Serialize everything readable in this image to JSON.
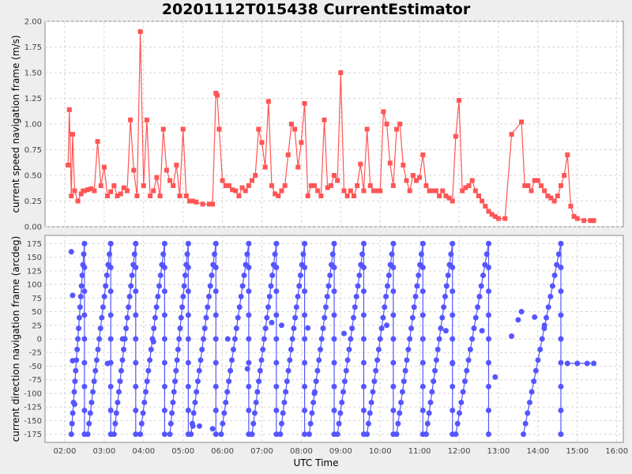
{
  "chart_data": [
    {
      "type": "line",
      "title": "20201112T015438 CurrentEstimator",
      "ylabel": "current speed navigation frame (m/s)",
      "xlabel": "",
      "color": "#ff5555",
      "marker": "square",
      "ylim": [
        0,
        2.0
      ],
      "yticks": [
        "0.00",
        "0.25",
        "0.50",
        "0.75",
        "1.00",
        "1.25",
        "1.50",
        "1.75",
        "2.00"
      ],
      "grid": true,
      "series": [
        {
          "x": [
            "02:05",
            "02:07",
            "02:10",
            "02:12",
            "02:15",
            "02:20",
            "02:25",
            "02:28",
            "02:30",
            "02:35",
            "02:40",
            "02:45",
            "02:50",
            "02:55",
            "03:00",
            "03:05",
            "03:10",
            "03:15",
            "03:20",
            "03:25",
            "03:30",
            "03:35",
            "03:40",
            "03:45",
            "03:50",
            "03:55",
            "04:00",
            "04:05",
            "04:10",
            "04:15",
            "04:20",
            "04:25",
            "04:30",
            "04:35",
            "04:40",
            "04:45",
            "04:50",
            "04:55",
            "05:00",
            "05:05",
            "05:10",
            "05:15",
            "05:20",
            "05:30",
            "05:40",
            "05:45",
            "05:50",
            "05:52",
            "05:55",
            "06:00",
            "06:05",
            "06:10",
            "06:15",
            "06:20",
            "06:25",
            "06:30",
            "06:35",
            "06:40",
            "06:45",
            "06:50",
            "06:55",
            "07:00",
            "07:05",
            "07:10",
            "07:15",
            "07:20",
            "07:25",
            "07:30",
            "07:35",
            "07:40",
            "07:45",
            "07:50",
            "07:55",
            "08:00",
            "08:05",
            "08:10",
            "08:15",
            "08:20",
            "08:25",
            "08:30",
            "08:35",
            "08:40",
            "08:45",
            "08:50",
            "08:55",
            "09:00",
            "09:05",
            "09:10",
            "09:15",
            "09:20",
            "09:25",
            "09:30",
            "09:35",
            "09:40",
            "09:45",
            "09:50",
            "09:55",
            "10:00",
            "10:05",
            "10:10",
            "10:15",
            "10:20",
            "10:25",
            "10:30",
            "10:35",
            "10:40",
            "10:45",
            "10:50",
            "10:55",
            "11:00",
            "11:05",
            "11:10",
            "11:15",
            "11:20",
            "11:25",
            "11:30",
            "11:35",
            "11:40",
            "11:45",
            "11:50",
            "11:55",
            "12:00",
            "12:05",
            "12:10",
            "12:15",
            "12:20",
            "12:25",
            "12:30",
            "12:35",
            "12:40",
            "12:45",
            "12:50",
            "12:55",
            "13:00",
            "13:10",
            "13:20",
            "13:35",
            "13:40",
            "13:45",
            "13:50",
            "13:55",
            "14:00",
            "14:05",
            "14:10",
            "14:15",
            "14:20",
            "14:25",
            "14:30",
            "14:35",
            "14:40",
            "14:45",
            "14:50",
            "14:55",
            "15:00",
            "15:10",
            "15:20",
            "15:25"
          ],
          "y": [
            0.6,
            1.14,
            0.3,
            0.9,
            0.35,
            0.25,
            0.32,
            0.35,
            0.35,
            0.36,
            0.37,
            0.35,
            0.83,
            0.4,
            0.58,
            0.3,
            0.34,
            0.4,
            0.3,
            0.32,
            0.38,
            0.35,
            1.04,
            0.55,
            0.3,
            1.9,
            0.4,
            1.04,
            0.3,
            0.35,
            0.48,
            0.3,
            0.95,
            0.55,
            0.45,
            0.4,
            0.6,
            0.3,
            0.95,
            0.3,
            0.25,
            0.25,
            0.24,
            0.22,
            0.22,
            0.22,
            1.3,
            1.28,
            0.95,
            0.45,
            0.4,
            0.4,
            0.36,
            0.35,
            0.3,
            0.38,
            0.35,
            0.4,
            0.45,
            0.5,
            0.95,
            0.82,
            0.58,
            1.22,
            0.4,
            0.32,
            0.3,
            0.35,
            0.4,
            0.7,
            1.0,
            0.95,
            0.58,
            0.82,
            1.2,
            0.3,
            0.4,
            0.4,
            0.35,
            0.3,
            1.04,
            0.38,
            0.4,
            0.5,
            0.45,
            1.5,
            0.35,
            0.3,
            0.35,
            0.3,
            0.4,
            0.61,
            0.35,
            0.95,
            0.4,
            0.35,
            0.35,
            0.35,
            1.12,
            1.0,
            0.62,
            0.4,
            0.95,
            1.0,
            0.6,
            0.45,
            0.35,
            0.5,
            0.45,
            0.48,
            0.7,
            0.4,
            0.35,
            0.35,
            0.35,
            0.3,
            0.35,
            0.3,
            0.28,
            0.25,
            0.88,
            1.23,
            0.35,
            0.38,
            0.4,
            0.45,
            0.35,
            0.3,
            0.25,
            0.2,
            0.15,
            0.12,
            0.1,
            0.08,
            0.08,
            0.9,
            1.02,
            0.4,
            0.4,
            0.35,
            0.45,
            0.45,
            0.4,
            0.35,
            0.3,
            0.28,
            0.25,
            0.3,
            0.4,
            0.5,
            0.7,
            0.2,
            0.1,
            0.08,
            0.06,
            0.06,
            0.06
          ]
        }
      ]
    },
    {
      "type": "scatter",
      "xlabel": "UTC Time",
      "ylabel": "current direction navigation frame (arcdeg)",
      "color": "#5555ff",
      "marker": "circle",
      "ylim": [
        -190,
        190
      ],
      "yticks": [
        "-175",
        "-150",
        "-125",
        "-100",
        "-75",
        "-50",
        "-25",
        "0",
        "25",
        "50",
        "75",
        "100",
        "125",
        "150",
        "175"
      ],
      "xticks": [
        "02:00",
        "03:00",
        "04:00",
        "05:00",
        "06:00",
        "07:00",
        "08:00",
        "09:00",
        "10:00",
        "11:00",
        "12:00",
        "13:00",
        "14:00",
        "15:00",
        "16:00"
      ],
      "xlim": [
        "01:30",
        "16:10"
      ],
      "grid": true,
      "series": [
        {
          "x": [
            "02:08",
            "02:30",
            "03:12",
            "03:50",
            "04:35",
            "05:10",
            "05:55",
            "06:38",
            "07:22",
            "08:05",
            "08:52",
            "09:35",
            "10:20",
            "11:05",
            "11:52",
            "12:45"
          ],
          "y": [
            -175,
            175,
            -175,
            175,
            -175,
            175,
            -175,
            175,
            -175,
            175,
            -175,
            175,
            -175,
            175,
            -175,
            175
          ],
          "wrap_cycles": [
            [
              "02:10",
              "02:30"
            ],
            [
              "02:35",
              "03:10"
            ],
            [
              "03:15",
              "03:48"
            ],
            [
              "03:55",
              "04:32"
            ],
            [
              "04:40",
              "05:08"
            ],
            [
              "05:12",
              "05:50"
            ],
            [
              "05:58",
              "06:40"
            ],
            [
              "06:45",
              "07:22"
            ],
            [
              "07:28",
              "08:05"
            ],
            [
              "08:12",
              "08:50"
            ],
            [
              "08:55",
              "09:35"
            ],
            [
              "09:40",
              "10:20"
            ],
            [
              "10:25",
              "11:05"
            ],
            [
              "11:10",
              "11:50"
            ],
            [
              "11:55",
              "12:45"
            ],
            [
              "13:38",
              "14:35"
            ]
          ],
          "extra_points": [
            {
              "x": "02:10",
              "y": 160
            },
            {
              "x": "02:12",
              "y": 80
            },
            {
              "x": "02:12",
              "y": -40
            },
            {
              "x": "02:15",
              "y": -120
            },
            {
              "x": "03:05",
              "y": -45
            },
            {
              "x": "03:28",
              "y": 0
            },
            {
              "x": "04:15",
              "y": -5
            },
            {
              "x": "05:15",
              "y": -160
            },
            {
              "x": "05:25",
              "y": -160
            },
            {
              "x": "05:45",
              "y": -165
            },
            {
              "x": "06:08",
              "y": 0
            },
            {
              "x": "06:38",
              "y": -55
            },
            {
              "x": "07:15",
              "y": 30
            },
            {
              "x": "07:30",
              "y": 25
            },
            {
              "x": "08:10",
              "y": 20
            },
            {
              "x": "08:20",
              "y": -100
            },
            {
              "x": "09:05",
              "y": 10
            },
            {
              "x": "10:10",
              "y": 25
            },
            {
              "x": "11:40",
              "y": 15
            },
            {
              "x": "11:50",
              "y": -45
            },
            {
              "x": "12:35",
              "y": 15
            },
            {
              "x": "12:55",
              "y": -70
            },
            {
              "x": "13:20",
              "y": 5
            },
            {
              "x": "13:30",
              "y": 35
            },
            {
              "x": "13:35",
              "y": 50
            },
            {
              "x": "13:55",
              "y": 40
            },
            {
              "x": "14:10",
              "y": 25
            },
            {
              "x": "14:45",
              "y": -45
            },
            {
              "x": "15:00",
              "y": -45
            },
            {
              "x": "15:15",
              "y": -45
            },
            {
              "x": "15:25",
              "y": -45
            }
          ]
        }
      ]
    }
  ]
}
